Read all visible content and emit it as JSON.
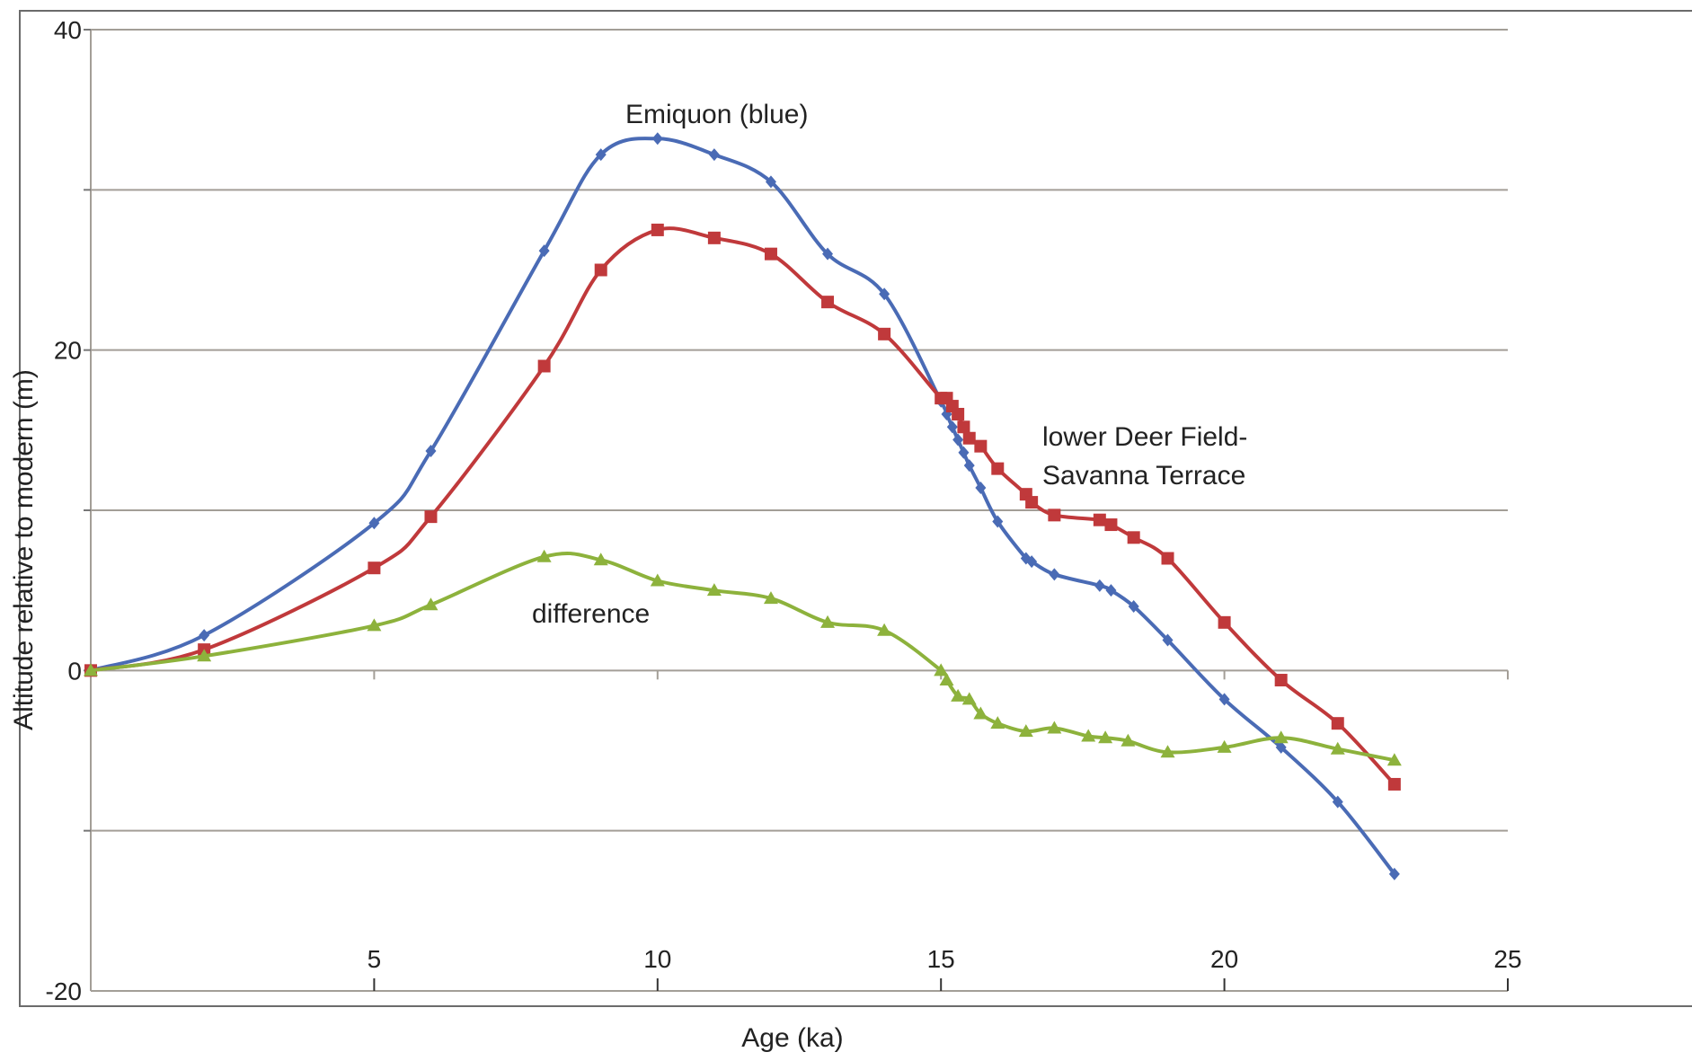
{
  "chart_data": {
    "type": "line",
    "title": "",
    "xlabel": "Age (ka)",
    "ylabel": "Altitude relative to modern (m)",
    "xlim": [
      0,
      25
    ],
    "ylim": [
      -20,
      40
    ],
    "x_ticks": [
      5,
      10,
      15,
      20,
      25
    ],
    "y_ticks": [
      -20,
      0,
      20,
      40
    ],
    "y_gridlines": [
      -10,
      0,
      10,
      20,
      30,
      40
    ],
    "grid": true,
    "legend": "none",
    "annotations": [
      {
        "text": "Emiquon (blue)",
        "series": "Emiquon (blue)"
      },
      {
        "text": "lower Deer Field-",
        "series": "lower Deer Field- Savanna Terrace"
      },
      {
        "text": "Savanna Terrace",
        "series": "lower Deer Field- Savanna Terrace"
      },
      {
        "text": "difference",
        "series": "difference"
      }
    ],
    "series": [
      {
        "name": "Emiquon (blue)",
        "color": "#4a6bb5",
        "marker": "diamond",
        "points": [
          [
            0,
            0
          ],
          [
            2,
            2.2
          ],
          [
            5,
            9.2
          ],
          [
            6,
            13.7
          ],
          [
            8,
            26.2
          ],
          [
            9,
            32.2
          ],
          [
            10,
            33.2
          ],
          [
            11,
            32.2
          ],
          [
            12,
            30.5
          ],
          [
            13,
            26.0
          ],
          [
            14,
            23.5
          ],
          [
            15,
            16.8
          ],
          [
            15.1,
            16.0
          ],
          [
            15.2,
            15.2
          ],
          [
            15.3,
            14.4
          ],
          [
            15.4,
            13.6
          ],
          [
            15.5,
            12.8
          ],
          [
            15.7,
            11.4
          ],
          [
            16,
            9.3
          ],
          [
            16.5,
            7.0
          ],
          [
            16.6,
            6.8
          ],
          [
            17,
            6.0
          ],
          [
            17.8,
            5.3
          ],
          [
            18,
            5.0
          ],
          [
            18.4,
            4.0
          ],
          [
            19,
            1.9
          ],
          [
            20,
            -1.8
          ],
          [
            21,
            -4.8
          ],
          [
            22,
            -8.2
          ],
          [
            23,
            -12.7
          ]
        ]
      },
      {
        "name": "lower Deer Field- Savanna Terrace",
        "color": "#c0393b",
        "marker": "square",
        "points": [
          [
            0,
            0
          ],
          [
            2,
            1.3
          ],
          [
            5,
            6.4
          ],
          [
            6,
            9.6
          ],
          [
            8,
            19.0
          ],
          [
            9,
            25.0
          ],
          [
            10,
            27.5
          ],
          [
            11,
            27.0
          ],
          [
            12,
            26.0
          ],
          [
            13,
            23.0
          ],
          [
            14,
            21.0
          ],
          [
            15,
            17.0
          ],
          [
            15.1,
            17.0
          ],
          [
            15.2,
            16.5
          ],
          [
            15.3,
            16.0
          ],
          [
            15.4,
            15.2
          ],
          [
            15.5,
            14.5
          ],
          [
            15.7,
            14.0
          ],
          [
            16,
            12.6
          ],
          [
            16.5,
            11.0
          ],
          [
            16.6,
            10.5
          ],
          [
            17,
            9.7
          ],
          [
            17.8,
            9.4
          ],
          [
            18,
            9.1
          ],
          [
            18.4,
            8.3
          ],
          [
            19,
            7.0
          ],
          [
            20,
            3.0
          ],
          [
            21,
            -0.6
          ],
          [
            22,
            -3.3
          ],
          [
            23,
            -7.1
          ]
        ]
      },
      {
        "name": "difference",
        "color": "#8db23c",
        "marker": "triangle",
        "points": [
          [
            0,
            0
          ],
          [
            2,
            0.9
          ],
          [
            5,
            2.8
          ],
          [
            6,
            4.1
          ],
          [
            8,
            7.1
          ],
          [
            9,
            6.9
          ],
          [
            10,
            5.6
          ],
          [
            11,
            5.0
          ],
          [
            12,
            4.5
          ],
          [
            13,
            3.0
          ],
          [
            14,
            2.5
          ],
          [
            15,
            0.0
          ],
          [
            15.1,
            -0.6
          ],
          [
            15.3,
            -1.6
          ],
          [
            15.5,
            -1.8
          ],
          [
            15.7,
            -2.7
          ],
          [
            16,
            -3.3
          ],
          [
            16.5,
            -3.8
          ],
          [
            17,
            -3.6
          ],
          [
            17.6,
            -4.1
          ],
          [
            17.9,
            -4.2
          ],
          [
            18.3,
            -4.4
          ],
          [
            19,
            -5.1
          ],
          [
            20,
            -4.8
          ],
          [
            21,
            -4.2
          ],
          [
            22,
            -4.9
          ],
          [
            23,
            -5.6
          ]
        ]
      }
    ]
  }
}
